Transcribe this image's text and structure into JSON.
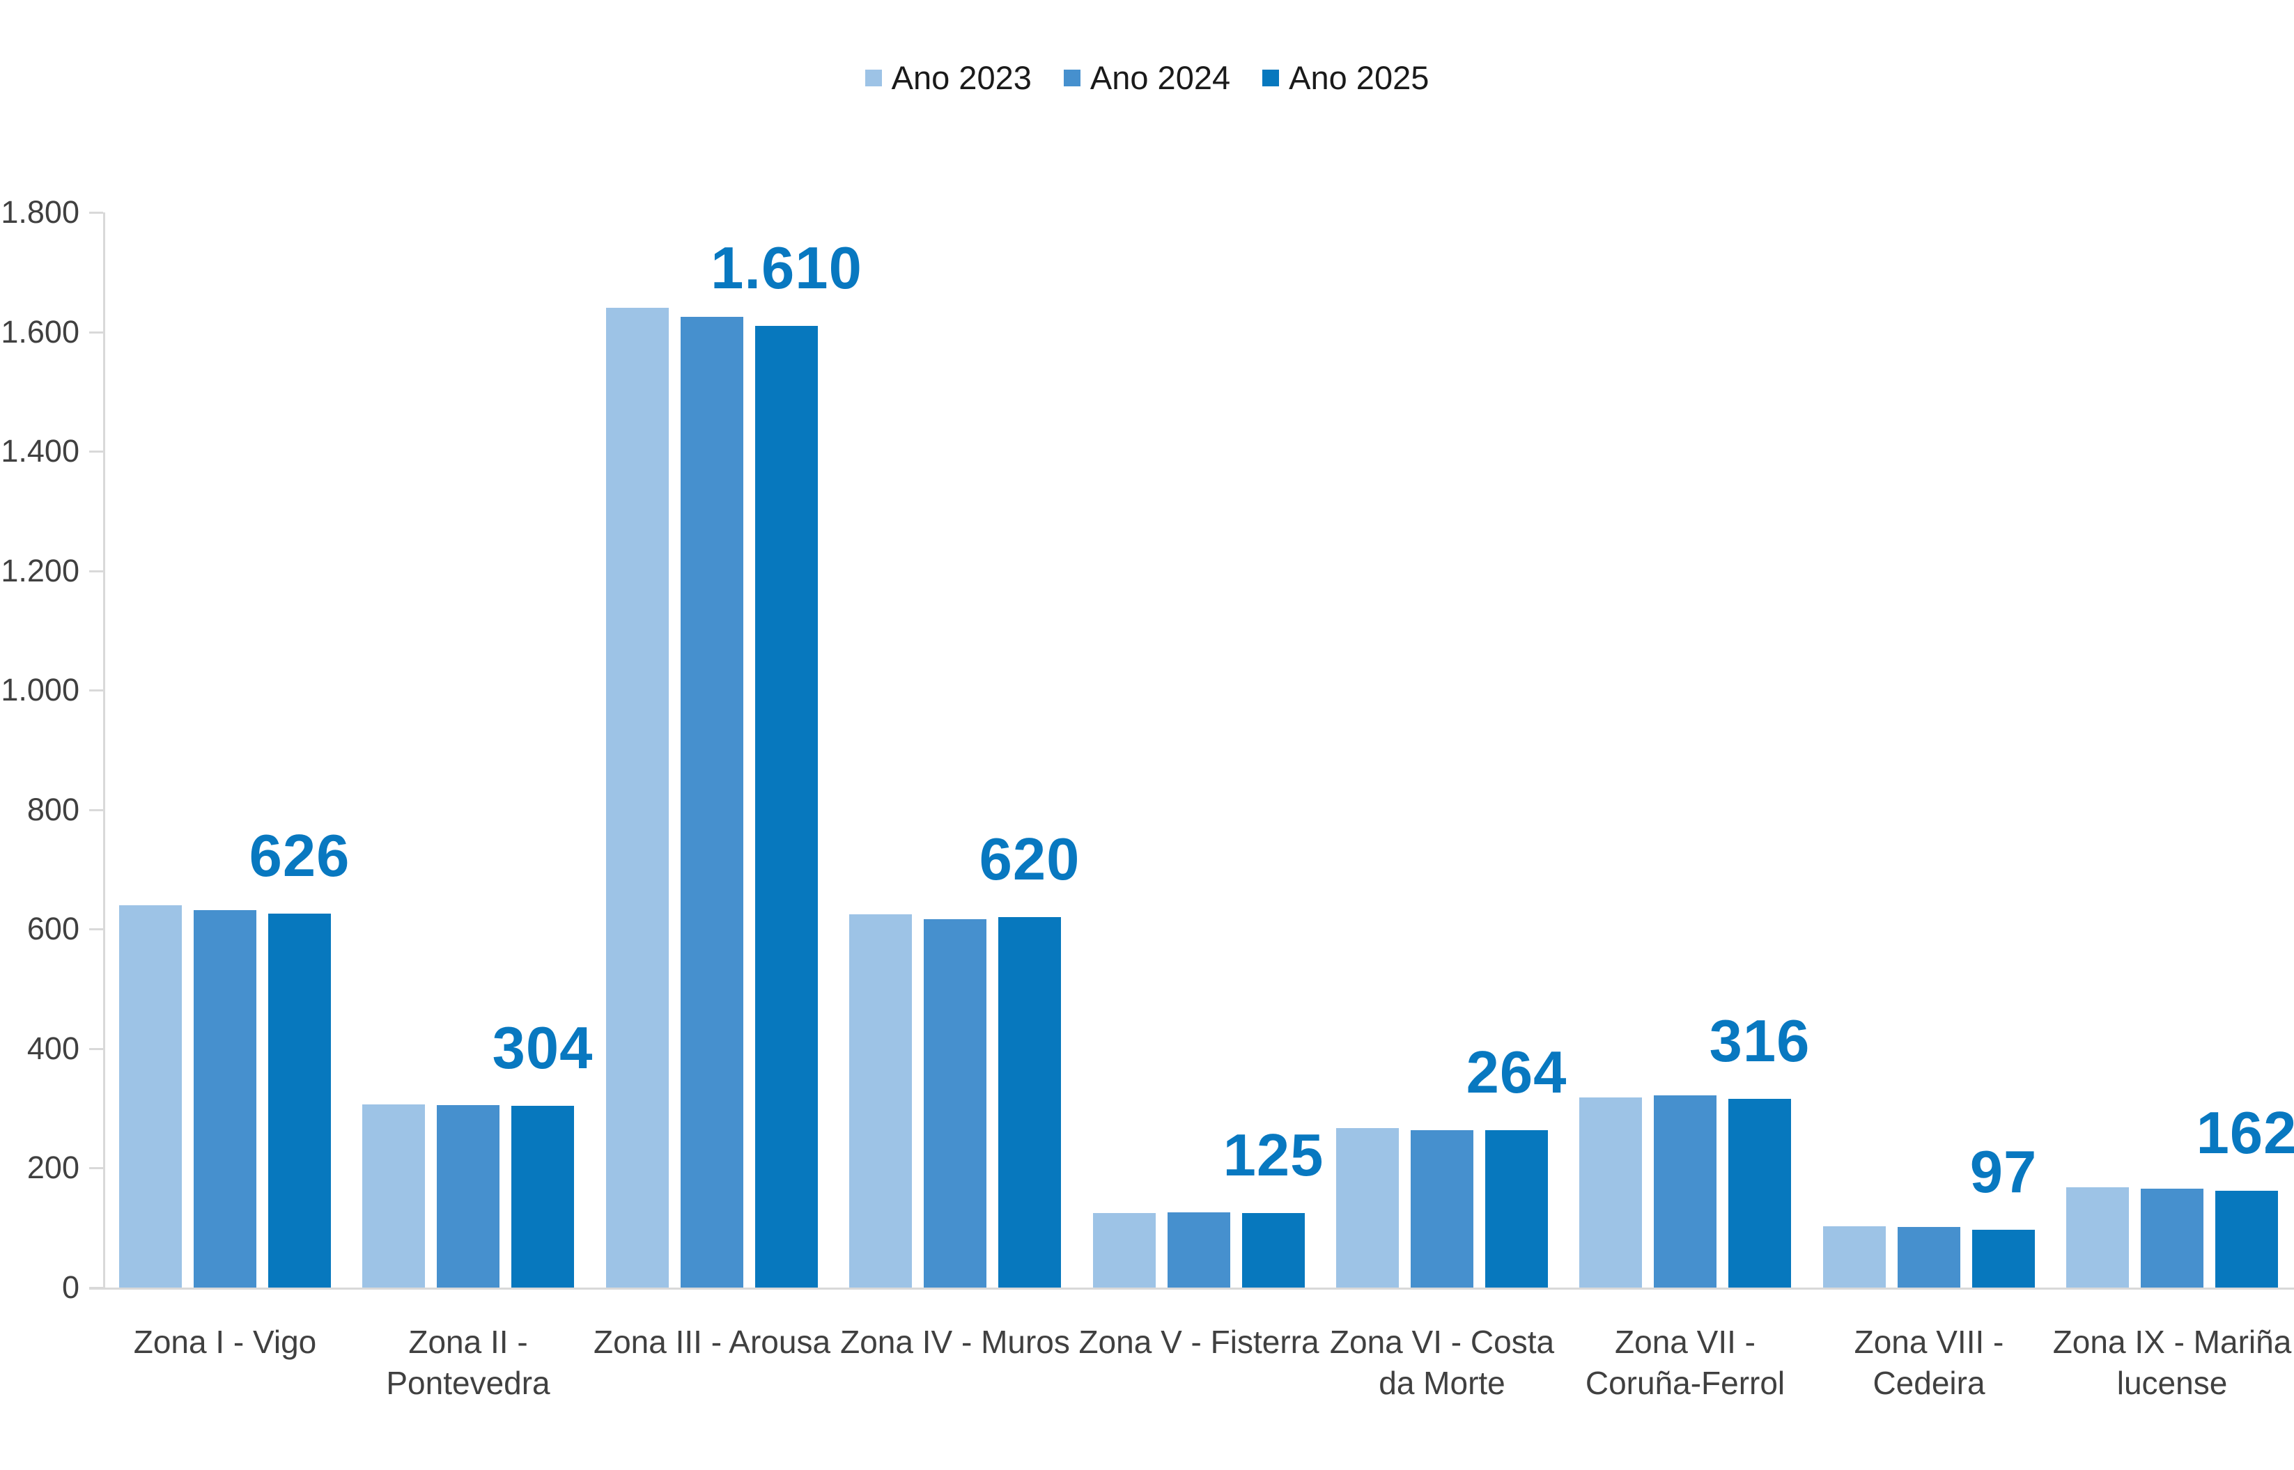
{
  "chart_data": {
    "type": "bar",
    "title": "",
    "xlabel": "",
    "ylabel": "",
    "categories": [
      "Zona I - Vigo",
      "Zona II - Pontevedra",
      "Zona III - Arousa",
      "Zona IV - Muros",
      "Zona V - Fisterra",
      "Zona VI - Costa da Morte",
      "Zona VII - Coruña-Ferrol",
      "Zona VIII - Cedeira",
      "Zona IX - Mariña lucense"
    ],
    "series": [
      {
        "name": "Ano 2023",
        "color": "#9dc3e6",
        "values": [
          640,
          307,
          1640,
          625,
          125,
          267,
          318,
          103,
          168
        ]
      },
      {
        "name": "Ano 2024",
        "color": "#4690ce",
        "values": [
          632,
          305,
          1625,
          617,
          126,
          263,
          322,
          101,
          165
        ]
      },
      {
        "name": "Ano 2025",
        "color": "#0778be",
        "values": [
          626,
          304,
          1610,
          620,
          125,
          264,
          316,
          97,
          162
        ],
        "data_labels": [
          "626",
          "304",
          "1.610",
          "620",
          "125",
          "264",
          "316",
          "97",
          "162"
        ]
      }
    ],
    "ylim": [
      0,
      1800
    ],
    "yticks": [
      {
        "value": 0,
        "label": "0"
      },
      {
        "value": 200,
        "label": "200"
      },
      {
        "value": 400,
        "label": "400"
      },
      {
        "value": 600,
        "label": "600"
      },
      {
        "value": 800,
        "label": "800"
      },
      {
        "value": 1000,
        "label": "1.000"
      },
      {
        "value": 1200,
        "label": "1.200"
      },
      {
        "value": 1400,
        "label": "1.400"
      },
      {
        "value": 1600,
        "label": "1.600"
      },
      {
        "value": 1800,
        "label": "1.800"
      }
    ],
    "grid": false,
    "legend_position": "top-center",
    "data_label_color": "#0878c0",
    "axis_line_color": "#d9d9d9",
    "axis_text_color": "#404040",
    "background_color": "#ffffff"
  }
}
